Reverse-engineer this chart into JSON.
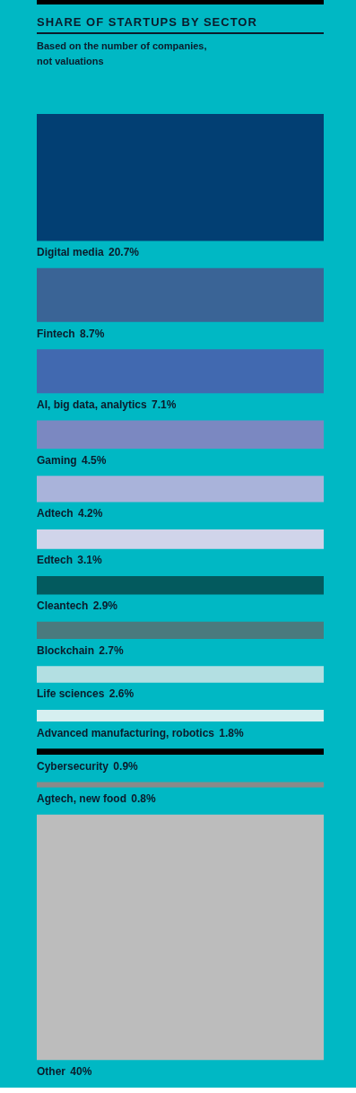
{
  "chart_data": {
    "type": "other",
    "title": "SHARE OF STARTUPS BY SECTOR",
    "subtitle": "Based on the number of companies,\nnot valuations",
    "categories": [
      "Digital media",
      "Fintech",
      "AI, big data, analytics",
      "Gaming",
      "Adtech",
      "Edtech",
      "Cleantech",
      "Blockchain",
      "Life sciences",
      "Advanced manufacturing, robotics",
      "Cybersecurity",
      "Agtech, new food",
      "Other"
    ],
    "values": [
      20.7,
      8.7,
      7.1,
      4.5,
      4.2,
      3.1,
      2.9,
      2.7,
      2.6,
      1.8,
      0.9,
      0.8,
      40
    ],
    "value_labels": [
      "20.7%",
      "8.7%",
      "7.1%",
      "4.5%",
      "4.2%",
      "3.1%",
      "2.9%",
      "2.7%",
      "2.6%",
      "1.8%",
      "0.9%",
      "0.8%",
      "40%"
    ],
    "colors": [
      "#023f73",
      "#3a6496",
      "#4169b0",
      "#7b88c1",
      "#a9b3da",
      "#d0d4ea",
      "#035a5e",
      "#4a7a7e",
      "#b3dfe2",
      "#d6eff0",
      "#000000",
      "#8a8a8a",
      "#bcbcbc"
    ]
  }
}
